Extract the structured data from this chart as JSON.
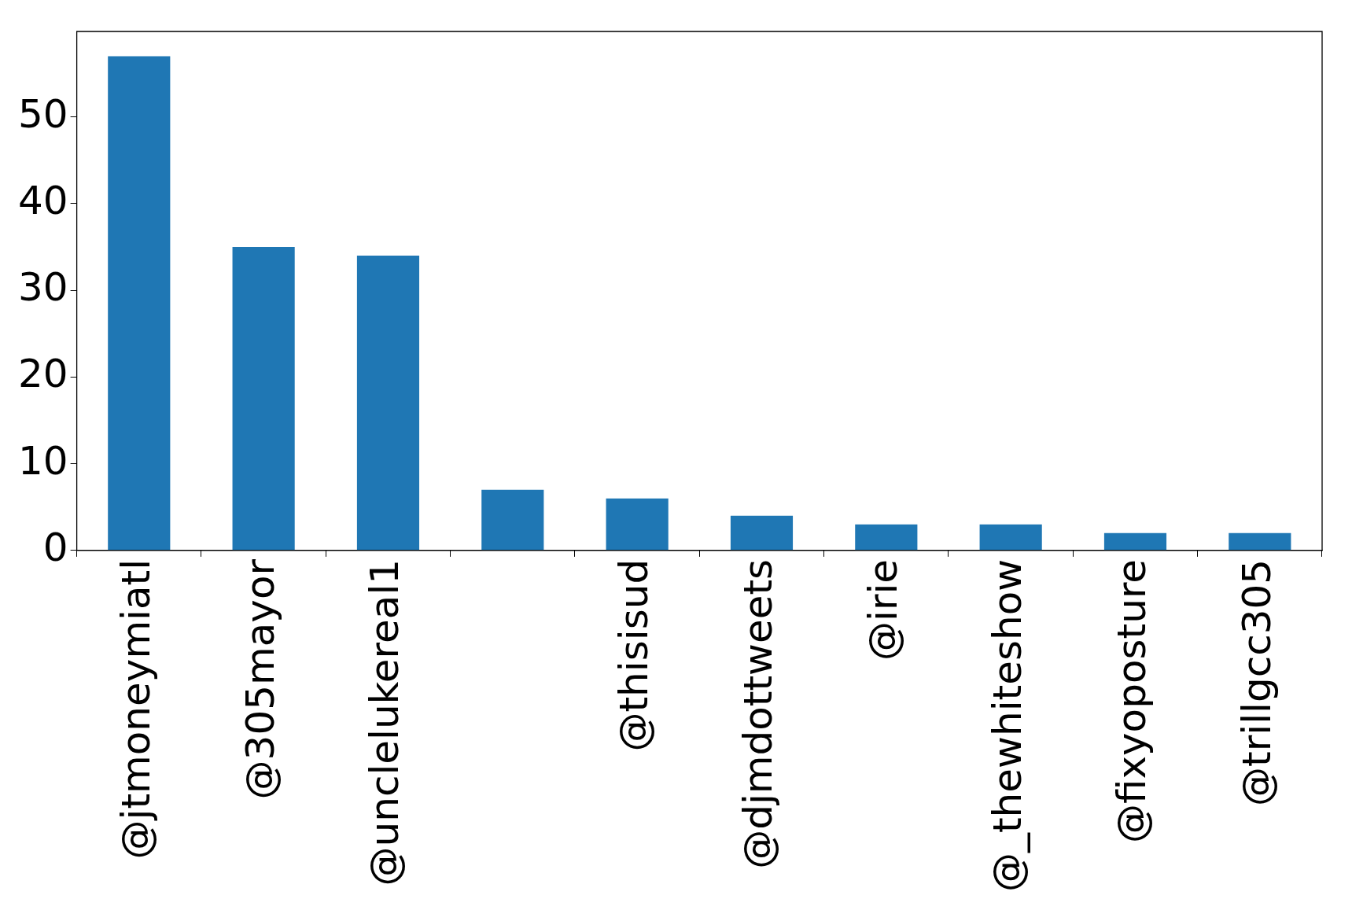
{
  "chart_data": {
    "type": "bar",
    "categories": [
      "@jtmoneymiatl",
      "@305mayor",
      "@unclelukereal1",
      null,
      "@thisisud",
      "@djmdottweets",
      "@irie",
      "@_thewhiteshow",
      "@fixyoposture",
      "@trillgcc305"
    ],
    "values": [
      57,
      35,
      34,
      7,
      6,
      4,
      3,
      3,
      2,
      2
    ],
    "color": "#1f77b4",
    "ylim": [
      0,
      59.85
    ],
    "yticks": [
      0,
      10,
      20,
      30,
      40,
      50
    ]
  }
}
